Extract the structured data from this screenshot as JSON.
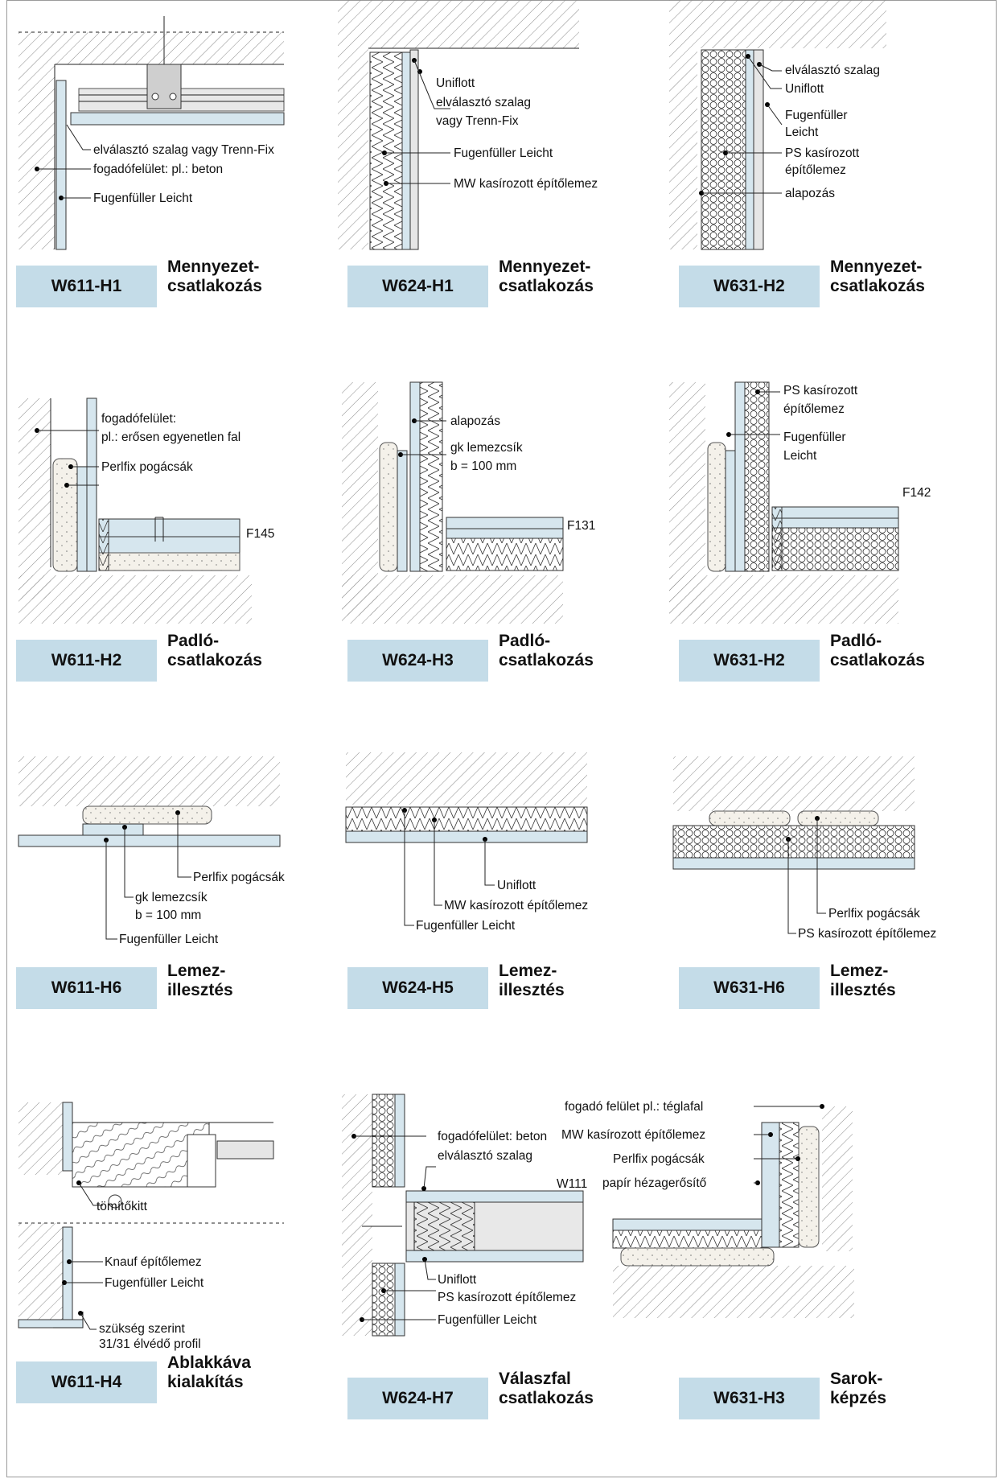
{
  "cells": [
    {
      "code": "W611-H1",
      "caption": [
        "Mennyezet-",
        "csatlakozás"
      ],
      "labels": [
        "elválasztó szalag vagy Trenn-Fix",
        "fogadófelület: pl.: beton",
        "Fugenfüller Leicht"
      ]
    },
    {
      "code": "W624-H1",
      "caption": [
        "Mennyezet-",
        "csatlakozás"
      ],
      "labels": [
        "Uniflott",
        "elválasztó szalag",
        "vagy Trenn-Fix",
        "Fugenfüller Leicht",
        "MW kasírozott építőlemez"
      ]
    },
    {
      "code": "W631-H2",
      "caption": [
        "Mennyezet-",
        "csatlakozás"
      ],
      "labels": [
        "elválasztó szalag",
        "Uniflott",
        "Fugenfüller",
        "Leicht",
        "PS kasírozott",
        "építőlemez",
        "alapozás"
      ]
    },
    {
      "code": "W611-H2",
      "caption": [
        "Padló-",
        "csatlakozás"
      ],
      "labels": [
        "fogadófelület:",
        "pl.: erősen egyenetlen fal",
        "Perlfix pogácsák",
        "F145"
      ]
    },
    {
      "code": "W624-H3",
      "caption": [
        "Padló-",
        "csatlakozás"
      ],
      "labels": [
        "alapozás",
        "gk lemezcsík",
        "b = 100 mm",
        "F131"
      ]
    },
    {
      "code": "W631-H2",
      "caption": [
        "Padló-",
        "csatlakozás"
      ],
      "labels": [
        "PS kasírozott",
        "építőlemez",
        "Fugenfüller",
        "Leicht",
        "F142"
      ]
    },
    {
      "code": "W611-H6",
      "caption": [
        "Lemez-",
        "illesztés"
      ],
      "labels": [
        "Perlfix pogácsák",
        "gk lemezcsík",
        "b = 100 mm",
        "Fugenfüller Leicht"
      ]
    },
    {
      "code": "W624-H5",
      "caption": [
        "Lemez-",
        "illesztés"
      ],
      "labels": [
        "Uniflott",
        "MW kasírozott építőlemez",
        "Fugenfüller Leicht"
      ]
    },
    {
      "code": "W631-H6",
      "caption": [
        "Lemez-",
        "illesztés"
      ],
      "labels": [
        "Perlfix pogácsák",
        "PS kasírozott építőlemez"
      ]
    },
    {
      "code": "W611-H4",
      "caption": [
        "Ablakkáva",
        "kialakítás"
      ],
      "labels": [
        "tömítőkitt",
        "Knauf építőlemez",
        "Fugenfüller Leicht",
        "szükség szerint",
        "31/31 élvédő profil"
      ]
    },
    {
      "code": "W624-H7",
      "caption": [
        "Válaszfal",
        "csatlakozás"
      ],
      "labels": [
        "fogadófelület: beton",
        "elválasztó szalag",
        "W111",
        "Uniflott",
        "PS kasírozott építőlemez",
        "Fugenfüller Leicht"
      ]
    },
    {
      "code": "W631-H3",
      "caption": [
        "Sarok-",
        "képzés"
      ],
      "labels": [
        "fogadó felület pl.: téglafal",
        "MW kasírozott építőlemez",
        "Perlfix pogácsák",
        "papír hézagerősítő"
      ]
    }
  ],
  "colors": {
    "code_box": "#c4dce8",
    "board": "#d6e6ee",
    "hatch": "#8a8a8a",
    "speckle": "#f4f1ea"
  }
}
